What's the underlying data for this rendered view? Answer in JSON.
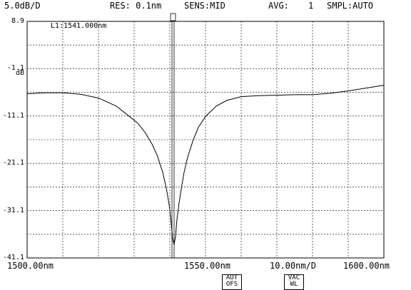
{
  "header": {
    "scale": "5.0dB/D",
    "resolution": "RES: 0.1nm",
    "sensitivity": "SENS:MID",
    "average_label": "AVG:",
    "average_value": "1",
    "sampling": "SMPL:AUTO"
  },
  "y_unit": "dB",
  "marker": {
    "label": "L1:1541.000nm",
    "symbol": "0"
  },
  "x_axis": {
    "left": "1500.00nm",
    "center": "1550.00nm",
    "span": "10.00nm/D",
    "right": "1600.00nm"
  },
  "softkeys": [
    {
      "line1": "AUT",
      "line2": "OFS"
    },
    {
      "line1": "VAC",
      "line2": "WL"
    }
  ],
  "colors": {
    "trace": "#000000",
    "grid": "#000000",
    "background": "#ffffff"
  },
  "chart_data": {
    "type": "line",
    "title": "",
    "xlabel": "",
    "ylabel": "dB",
    "xlim": [
      1500,
      1600
    ],
    "ylim": [
      -41.1,
      8.9
    ],
    "grid": true,
    "y_ticks": [
      "8.9",
      "-1.1",
      "-11.1",
      "-21.1",
      "-31.1",
      "-41.1"
    ],
    "y_tick_values": [
      8.9,
      -1.1,
      -11.1,
      -21.1,
      -31.1,
      -41.1
    ],
    "marker_x": 1541.0,
    "series": [
      {
        "x": [
          1500,
          1505,
          1510,
          1515,
          1520,
          1525,
          1528,
          1531,
          1533,
          1535,
          1536.5,
          1538,
          1539,
          1539.8,
          1540.3,
          1540.8,
          1541.2,
          1541.6,
          1542.0,
          1542.5,
          1543.2,
          1544,
          1545,
          1546.5,
          1548,
          1550,
          1553,
          1556,
          1560,
          1565,
          1570,
          1575,
          1580,
          1585,
          1590,
          1595,
          1600
        ],
        "y": [
          -6.4,
          -6.2,
          -6.2,
          -6.5,
          -7.3,
          -9.0,
          -10.8,
          -12.6,
          -14.5,
          -17.0,
          -19.5,
          -23.0,
          -26.3,
          -29.8,
          -33.0,
          -37.1,
          -38.3,
          -36.5,
          -33.0,
          -30.0,
          -26.5,
          -23.0,
          -19.8,
          -16.3,
          -13.5,
          -11.2,
          -9.0,
          -7.8,
          -7.0,
          -6.8,
          -6.7,
          -6.6,
          -6.6,
          -6.3,
          -5.8,
          -5.2,
          -4.6
        ]
      }
    ]
  }
}
